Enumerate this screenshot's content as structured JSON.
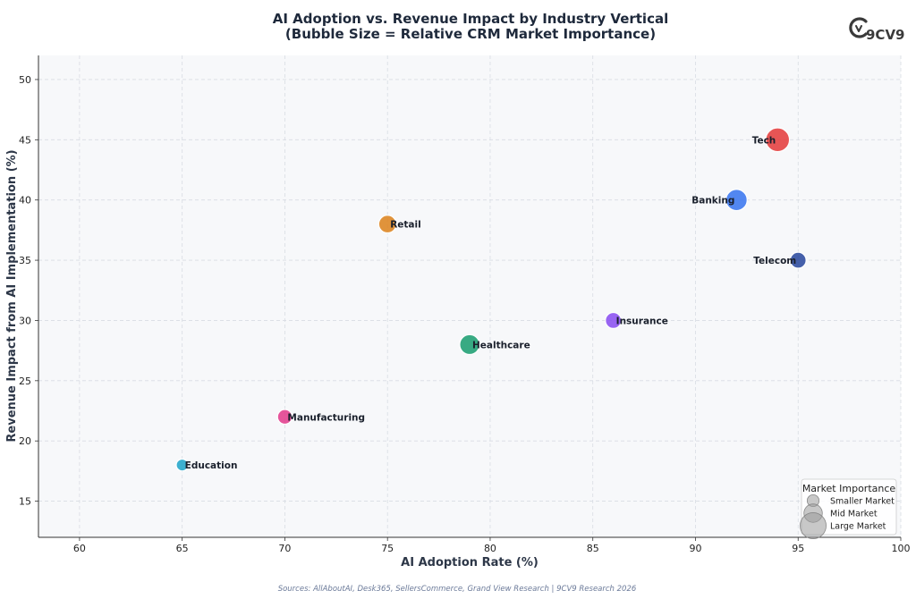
{
  "chart_data": {
    "type": "scatter",
    "title": "AI Adoption vs. Revenue Impact by Industry Vertical",
    "subtitle": "(Bubble Size = Relative CRM Market Importance)",
    "xlabel": "AI Adoption Rate (%)",
    "ylabel": "Revenue Impact from AI Implementation (%)",
    "xlim": [
      58,
      100
    ],
    "ylim": [
      12,
      52
    ],
    "xticks": [
      60,
      65,
      70,
      75,
      80,
      85,
      90,
      95,
      100
    ],
    "yticks": [
      15,
      20,
      25,
      30,
      35,
      40,
      45,
      50
    ],
    "grid": true,
    "points": [
      {
        "label": "Tech",
        "x": 94,
        "y": 45,
        "size": 10,
        "color": "#e53e3e",
        "label_side": "left"
      },
      {
        "label": "Banking",
        "x": 92,
        "y": 40,
        "size": 8,
        "color": "#3b76ef",
        "label_side": "left"
      },
      {
        "label": "Retail",
        "x": 75,
        "y": 38,
        "size": 5.5,
        "color": "#dd8420",
        "label_side": "right"
      },
      {
        "label": "Telecom",
        "x": 95,
        "y": 35,
        "size": 4.5,
        "color": "#2c4a9e",
        "label_side": "left"
      },
      {
        "label": "Insurance",
        "x": 86,
        "y": 30,
        "size": 4.5,
        "color": "#8b4ef0",
        "label_side": "right"
      },
      {
        "label": "Healthcare",
        "x": 79,
        "y": 28,
        "size": 7,
        "color": "#1e9e72",
        "label_side": "right"
      },
      {
        "label": "Manufacturing",
        "x": 70,
        "y": 22,
        "size": 3.8,
        "color": "#e23d8d",
        "label_side": "right"
      },
      {
        "label": "Education",
        "x": 65,
        "y": 18,
        "size": 2.5,
        "color": "#23a5c9",
        "label_side": "right"
      }
    ],
    "legend": {
      "title": "Market Importance",
      "placement": "bottom-right",
      "entries": [
        {
          "label": "Smaller Market",
          "size": 2.5
        },
        {
          "label": "Mid Market",
          "size": 6
        },
        {
          "label": "Large Market",
          "size": 12
        }
      ]
    },
    "source": "Sources: AllAboutAI, Desk365, SellersCommerce, Grand View Research | 9CV9 Research 2026"
  },
  "brand": {
    "logo_text": "9CV9",
    "accent": "#3a3a3a"
  }
}
